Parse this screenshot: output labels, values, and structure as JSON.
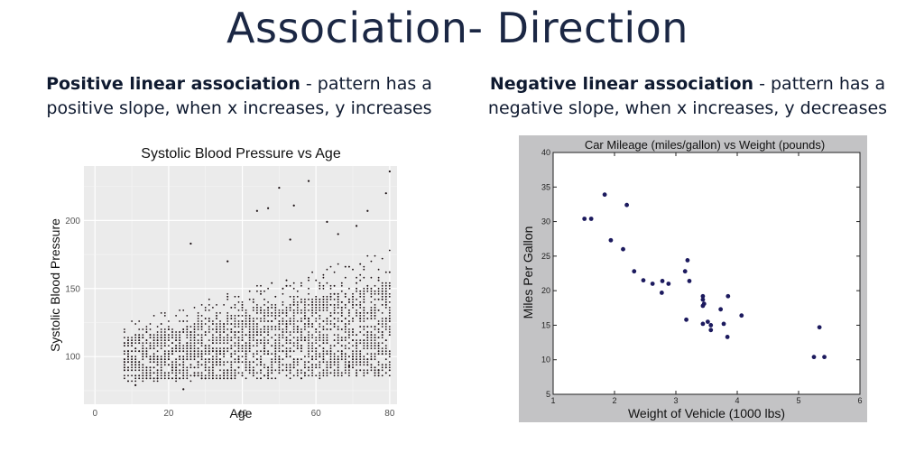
{
  "slide": {
    "title": "Association- Direction",
    "left_caption": {
      "bold": "Positive linear association",
      "text": " - pattern has a positive slope, when x increases, y increases"
    },
    "right_caption": {
      "bold": "Negative linear association",
      "text": " - pattern has a negative slope, when x increases, y decreases"
    }
  },
  "chart_data": [
    {
      "type": "scatter",
      "title": "Systolic Blood Pressure vs Age",
      "xlabel": "Age",
      "ylabel": "Systolic Blood Pressure",
      "xlim": [
        -3,
        82
      ],
      "ylim": [
        65,
        240
      ],
      "xticks": [
        0,
        20,
        40,
        60,
        80
      ],
      "yticks": [
        100,
        150,
        200
      ],
      "grid": true,
      "background": "#ebebeb",
      "point_color": "#1a0f12",
      "x_range_of_points": [
        8,
        80
      ],
      "outliers": [
        {
          "x": 26,
          "y": 183
        },
        {
          "x": 44,
          "y": 207
        },
        {
          "x": 47,
          "y": 209
        },
        {
          "x": 50,
          "y": 224
        },
        {
          "x": 54,
          "y": 211
        },
        {
          "x": 58,
          "y": 229
        },
        {
          "x": 80,
          "y": 236
        },
        {
          "x": 74,
          "y": 207
        },
        {
          "x": 79,
          "y": 220
        },
        {
          "x": 71,
          "y": 196
        },
        {
          "x": 63,
          "y": 199
        },
        {
          "x": 24,
          "y": 76
        },
        {
          "x": 11,
          "y": 79
        },
        {
          "x": 77,
          "y": 90
        },
        {
          "x": 69,
          "y": 93
        },
        {
          "x": 36,
          "y": 170
        },
        {
          "x": 53,
          "y": 186
        },
        {
          "x": 66,
          "y": 190
        }
      ]
    },
    {
      "type": "scatter",
      "title": "Car Mileage (miles/gallon) vs Weight (pounds)",
      "xlabel": "Weight of Vehicle (1000 lbs)",
      "ylabel": "Miles Per Gallon",
      "xlim": [
        1,
        6
      ],
      "ylim": [
        5,
        40
      ],
      "xticks": [
        1,
        2,
        3,
        4,
        5,
        6
      ],
      "yticks": [
        5,
        10,
        15,
        20,
        25,
        30,
        35,
        40
      ],
      "grid": false,
      "point_color": "#1c1a5e",
      "points": [
        {
          "x": 1.51,
          "y": 30.4
        },
        {
          "x": 1.62,
          "y": 30.4
        },
        {
          "x": 1.84,
          "y": 33.9
        },
        {
          "x": 1.94,
          "y": 27.3
        },
        {
          "x": 2.14,
          "y": 26.0
        },
        {
          "x": 2.2,
          "y": 32.4
        },
        {
          "x": 2.32,
          "y": 22.8
        },
        {
          "x": 2.47,
          "y": 21.5
        },
        {
          "x": 2.62,
          "y": 21.0
        },
        {
          "x": 2.77,
          "y": 19.7
        },
        {
          "x": 2.78,
          "y": 21.4
        },
        {
          "x": 2.88,
          "y": 21.0
        },
        {
          "x": 3.15,
          "y": 22.8
        },
        {
          "x": 3.17,
          "y": 15.8
        },
        {
          "x": 3.19,
          "y": 24.4
        },
        {
          "x": 3.22,
          "y": 21.4
        },
        {
          "x": 3.44,
          "y": 17.8
        },
        {
          "x": 3.44,
          "y": 19.2
        },
        {
          "x": 3.44,
          "y": 18.7
        },
        {
          "x": 3.46,
          "y": 18.1
        },
        {
          "x": 3.44,
          "y": 15.2
        },
        {
          "x": 3.52,
          "y": 15.5
        },
        {
          "x": 3.57,
          "y": 14.3
        },
        {
          "x": 3.57,
          "y": 15.0
        },
        {
          "x": 3.73,
          "y": 17.3
        },
        {
          "x": 3.78,
          "y": 15.2
        },
        {
          "x": 3.84,
          "y": 13.3
        },
        {
          "x": 3.85,
          "y": 19.2
        },
        {
          "x": 4.07,
          "y": 16.4
        },
        {
          "x": 5.25,
          "y": 10.4
        },
        {
          "x": 5.34,
          "y": 14.7
        },
        {
          "x": 5.42,
          "y": 10.4
        }
      ]
    }
  ]
}
